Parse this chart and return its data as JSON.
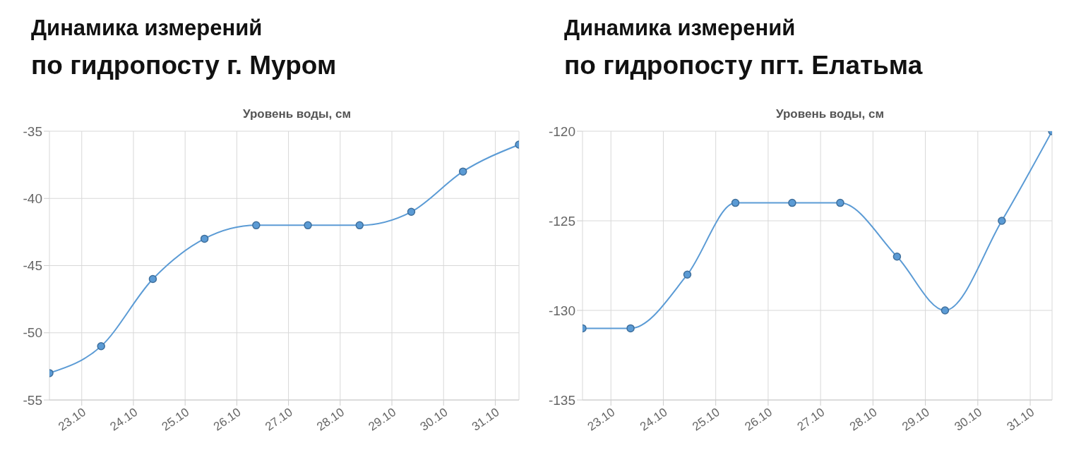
{
  "chart_data": [
    {
      "type": "line",
      "title": "Динамика измерений",
      "subtitle": "по гидропосту г. Муром",
      "ylabel": "Уровень воды, см",
      "x": [
        "--10-22T09:00",
        "--10-23T09:00",
        "--10-24T09:00",
        "--10-25T09:00",
        "--10-26T09:00",
        "--10-27T09:00",
        "--10-28T09:00",
        "--10-29T09:00",
        "--10-30T09:00",
        "--10-31T11:00"
      ],
      "series": [
        {
          "color": "#5b9bd5",
          "values": [
            -53,
            -51,
            -46,
            -43,
            -42,
            -42,
            -42,
            -41,
            -38,
            -36
          ]
        }
      ],
      "xlim": [
        "--10-22T09:00",
        "--10-31T11:00"
      ],
      "xticks": [
        {
          "value": "--10-23",
          "label": "23.10"
        },
        {
          "value": "--10-24",
          "label": "24.10"
        },
        {
          "value": "--10-25",
          "label": "25.10"
        },
        {
          "value": "--10-26",
          "label": "26.10"
        },
        {
          "value": "--10-27",
          "label": "27.10"
        },
        {
          "value": "--10-28",
          "label": "28.10"
        },
        {
          "value": "--10-29",
          "label": "29.10"
        },
        {
          "value": "--10-30",
          "label": "30.10"
        },
        {
          "value": "--10-31",
          "label": "31.10"
        }
      ],
      "ylim": [
        -55,
        -35
      ],
      "yticks": [
        -55,
        -50,
        -45,
        -40,
        -35
      ],
      "grid": true,
      "marker": "circle",
      "legend": false
    },
    {
      "type": "line",
      "title": "Динамика измерений",
      "subtitle": "по гидропосту пгт. Елатьма",
      "ylabel": "Уровень воды, см",
      "x": [
        "--10-22T11:00",
        "--10-23T09:00",
        "--10-24T11:00",
        "--10-25T09:00",
        "--10-26T11:00",
        "--10-27T09:00",
        "--10-28T11:00",
        "--10-29T09:00",
        "--10-30T11:00",
        "--10-31T10:00"
      ],
      "series": [
        {
          "color": "#5b9bd5",
          "values": [
            -131,
            -131,
            -128,
            -124,
            -124,
            -124,
            -127,
            -130,
            -125,
            -120
          ]
        }
      ],
      "xlim": [
        "--10-22T11:00",
        "--10-31T10:00"
      ],
      "xticks": [
        {
          "value": "--10-23",
          "label": "23.10"
        },
        {
          "value": "--10-24",
          "label": "24.10"
        },
        {
          "value": "--10-25",
          "label": "25.10"
        },
        {
          "value": "--10-26",
          "label": "26.10"
        },
        {
          "value": "--10-27",
          "label": "27.10"
        },
        {
          "value": "--10-28",
          "label": "28.10"
        },
        {
          "value": "--10-29",
          "label": "29.10"
        },
        {
          "value": "--10-30",
          "label": "30.10"
        },
        {
          "value": "--10-31",
          "label": "31.10"
        }
      ],
      "ylim": [
        -135,
        -120
      ],
      "yticks": [
        -135,
        -130,
        -125,
        -120
      ],
      "grid": true,
      "marker": "circle",
      "legend": false
    }
  ]
}
